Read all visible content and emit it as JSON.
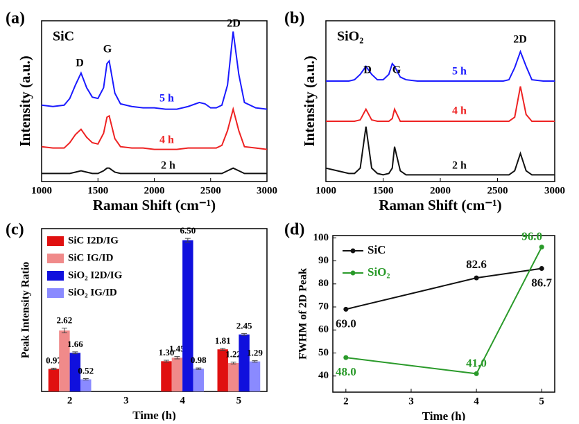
{
  "chart_data": [
    {
      "type": "line",
      "panel_label": "(a)",
      "inset_label": "SiC",
      "xlabel": "Raman Shift (cm⁻¹)",
      "ylabel": "Intensity (a.u.)",
      "x": [
        1000,
        1100,
        1200,
        1250,
        1300,
        1350,
        1400,
        1450,
        1500,
        1550,
        1580,
        1600,
        1650,
        1700,
        1800,
        1900,
        2000,
        2100,
        2200,
        2300,
        2400,
        2450,
        2500,
        2550,
        2600,
        2650,
        2700,
        2750,
        2800,
        2900,
        3000
      ],
      "xlim": [
        1000,
        3000
      ],
      "xticks": [
        1000,
        1500,
        2000,
        2500,
        3000
      ],
      "ylim": [
        0,
        120
      ],
      "annotations": [
        "D",
        "G",
        "2D"
      ],
      "series": [
        {
          "name": "5 h",
          "color": "#1a1aff",
          "values": [
            57,
            56,
            57,
            62,
            72,
            81,
            70,
            63,
            62,
            70,
            88,
            90,
            66,
            58,
            56,
            55,
            55,
            54,
            54,
            56,
            59,
            58,
            55,
            55,
            57,
            72,
            112,
            80,
            59,
            55,
            54
          ]
        },
        {
          "name": "4 h",
          "color": "#ee2222",
          "values": [
            26,
            25,
            25,
            29,
            35,
            39,
            33,
            29,
            28,
            36,
            48,
            49,
            32,
            26,
            25,
            25,
            24,
            24,
            24,
            25,
            25,
            25,
            25,
            25,
            27,
            38,
            54,
            38,
            26,
            25,
            24
          ]
        },
        {
          "name": "2 h",
          "color": "#111111",
          "values": [
            6,
            6,
            6,
            6,
            7,
            8,
            7,
            6,
            6,
            8,
            10,
            10,
            7,
            6,
            6,
            6,
            6,
            6,
            6,
            6,
            6,
            6,
            6,
            6,
            6,
            8,
            10,
            8,
            6,
            6,
            6
          ]
        }
      ]
    },
    {
      "type": "line",
      "panel_label": "(b)",
      "inset_label": "SiO₂",
      "xlabel": "Raman Shift (cm⁻¹)",
      "ylabel": "Intensity (a.u.)",
      "x": [
        1000,
        1100,
        1200,
        1250,
        1300,
        1350,
        1400,
        1450,
        1500,
        1550,
        1580,
        1600,
        1650,
        1700,
        1800,
        1900,
        2000,
        2100,
        2200,
        2300,
        2400,
        2450,
        2500,
        2550,
        2600,
        2650,
        2700,
        2750,
        2800,
        2900,
        3000
      ],
      "xlim": [
        1000,
        3000
      ],
      "xticks": [
        1000,
        1500,
        2000,
        2500,
        3000
      ],
      "ylim": [
        0,
        120
      ],
      "annotations": [
        "D",
        "G",
        "2D"
      ],
      "series": [
        {
          "name": "5 h",
          "color": "#1a1aff",
          "values": [
            75,
            75,
            75,
            76,
            80,
            86,
            80,
            76,
            76,
            80,
            88,
            86,
            78,
            76,
            75,
            75,
            75,
            75,
            75,
            75,
            75,
            75,
            75,
            75,
            76,
            85,
            97,
            86,
            76,
            75,
            75
          ]
        },
        {
          "name": "4 h",
          "color": "#ee2222",
          "values": [
            45,
            45,
            45,
            45,
            46,
            54,
            46,
            45,
            45,
            45,
            47,
            54,
            45,
            45,
            45,
            45,
            45,
            45,
            45,
            45,
            45,
            45,
            45,
            45,
            45,
            48,
            71,
            50,
            45,
            45,
            45
          ]
        },
        {
          "name": "2 h",
          "color": "#111111",
          "values": [
            10,
            8,
            6,
            6,
            10,
            41,
            10,
            6,
            5,
            6,
            10,
            26,
            8,
            5,
            5,
            5,
            5,
            5,
            5,
            5,
            5,
            5,
            5,
            5,
            5,
            8,
            21,
            8,
            5,
            5,
            5
          ]
        }
      ]
    },
    {
      "type": "bar",
      "panel_label": "(c)",
      "xlabel": "Time (h)",
      "ylabel": "Peak Intensity Ratio",
      "categories": [
        "2",
        "3",
        "4",
        "5"
      ],
      "ylim": [
        0,
        7
      ],
      "series": [
        {
          "name": "SiC I2D/IG",
          "color": "#e01010",
          "values": [
            0.97,
            null,
            1.3,
            1.81
          ],
          "value_labels": [
            "0.97",
            null,
            "1.30",
            "1.81"
          ],
          "errors": [
            0.03,
            null,
            0.04,
            0.04
          ]
        },
        {
          "name": "SiC IG/ID",
          "color": "#f08a8a",
          "values": [
            2.62,
            null,
            1.45,
            1.22
          ],
          "value_labels": [
            "2.62",
            null,
            "1.45",
            "1.22"
          ],
          "errors": [
            0.1,
            null,
            0.05,
            0.04
          ]
        },
        {
          "name": "SiO₂ I2D/IG",
          "color": "#1010dd",
          "values": [
            1.66,
            null,
            6.5,
            2.45
          ],
          "value_labels": [
            "1.66",
            null,
            "6.50",
            "2.45"
          ],
          "errors": [
            0.04,
            null,
            0.08,
            0.04
          ]
        },
        {
          "name": "SiO₂ IG/ID",
          "color": "#8a8aff",
          "values": [
            0.52,
            null,
            0.98,
            1.29
          ],
          "value_labels": [
            "0.52",
            null,
            "0.98",
            "1.29"
          ],
          "errors": [
            0.03,
            null,
            0.03,
            0.03
          ]
        }
      ]
    },
    {
      "type": "markers",
      "panel_label": "(d)",
      "xlabel": "Time (h)",
      "ylabel": "FWHM of 2D Peak",
      "x": [
        2,
        4,
        5
      ],
      "xlim": [
        1.8,
        5.2
      ],
      "xticks": [
        2,
        3,
        4,
        5
      ],
      "ylim": [
        33,
        101
      ],
      "yticks": [
        40,
        50,
        60,
        70,
        80,
        90,
        100
      ],
      "series": [
        {
          "name": "SiC",
          "color": "#111111",
          "values": [
            69.0,
            82.6,
            86.7
          ],
          "value_labels": [
            "69.0",
            "82.6",
            "86.7"
          ]
        },
        {
          "name": "SiO₂",
          "color": "#2a9a2a",
          "values": [
            48.0,
            41.0,
            96.0
          ],
          "value_labels": [
            "48.0",
            "41.0",
            "96.0"
          ]
        }
      ]
    }
  ]
}
